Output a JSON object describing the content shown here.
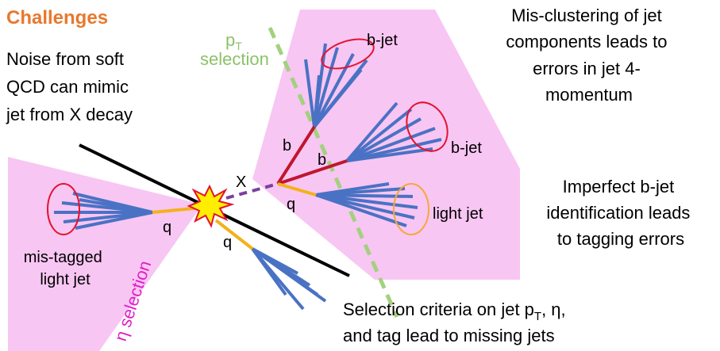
{
  "header": {
    "title": "Challenges"
  },
  "notes": {
    "noise": [
      "Noise from soft",
      "QCD can mimic",
      "jet from X decay"
    ],
    "misclustering": [
      "Mis-clustering of jet",
      "components leads to",
      "errors in jet 4-",
      "momentum"
    ],
    "btag": [
      "Imperfect b-jet",
      "identification leads",
      "to tagging errors"
    ],
    "selection": {
      "line1": [
        "Selection criteria on jet p",
        "T",
        ", η,"
      ],
      "line2": "and tag lead to missing jets"
    }
  },
  "labels": {
    "pt_selection": {
      "symbol": "p",
      "sub": "T",
      "word": "selection"
    },
    "eta_selection": "η selection",
    "bjet_top": "b-jet",
    "bjet_right": "b-jet",
    "b_up": "b",
    "b_right": "b",
    "x": "X",
    "q_right": "q",
    "q_left": "q",
    "q_down": "q",
    "light_jet": "light jet",
    "mistagged": [
      "mis-tagged",
      "light jet"
    ]
  }
}
